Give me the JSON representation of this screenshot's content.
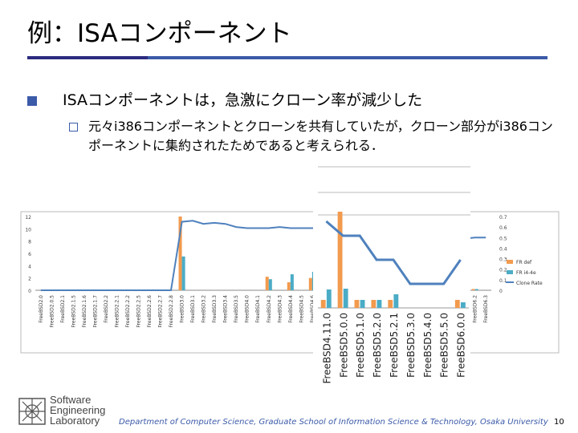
{
  "slide": {
    "title": "例：ISAコンポーネント",
    "bullet_main": "ISAコンポーネントは，急激にクローン率が減少した",
    "bullet_sub": "元々i386コンポーネントとクローンを共有していたが，クローン部分がi386コンポーネントに集約されたためであると考えられる．",
    "footer": "Department of Computer Science, Graduate School of Information Science & Technology, Osaka University",
    "page_number": "10",
    "logo_lines": [
      "Software",
      "Engineering",
      "Laboratory"
    ]
  },
  "colors": {
    "bar1": "#f29a4e",
    "bar2": "#4bacc6",
    "line": "#4f81bd",
    "accent": "#3b5aa8"
  },
  "chart_data": [
    {
      "type": "bar",
      "categories": [
        "FreeBSD2.0",
        "FreeBSD2.0.5",
        "FreeBSD2.1",
        "FreeBSD2.1.5",
        "FreeBSD2.1.6",
        "FreeBSD2.1.7",
        "FreeBSD2.2",
        "FreeBSD2.2.1",
        "FreeBSD2.2.2",
        "FreeBSD2.2.5",
        "FreeBSD2.2.6",
        "FreeBSD2.2.7",
        "FreeBSD2.2.8",
        "FreeBSD3.0",
        "FreeBSD3.1",
        "FreeBSD3.2",
        "FreeBSD3.3",
        "FreeBSD3.4",
        "FreeBSD3.5",
        "FreeBSD4.0",
        "FreeBSD4.1",
        "FreeBSD4.2",
        "FreeBSD4.3",
        "FreeBSD4.4",
        "FreeBSD4.5",
        "FreeBSD4.6",
        "FreeBSD4.7",
        "FreeBSD4.8",
        "FreeBSD4.9",
        "FreeBSD4.10",
        "FreeBSD4.11",
        "FreeBSD5.0",
        "FreeBSD5.1",
        "FreeBSD5.2",
        "FreeBSD5.2.1",
        "FreeBSD5.3",
        "FreeBSD5.4",
        "FreeBSD5.5",
        "FreeBSD6.0",
        "FreeBSD6.1",
        "FreeBSD6.2",
        "FreeBSD6.3"
      ],
      "series": [
        {
          "name": "FR def",
          "values": [
            0,
            0,
            0,
            0,
            0,
            0,
            0,
            0,
            0,
            0,
            0,
            0,
            0,
            12,
            0,
            0,
            0,
            0,
            0,
            0,
            0,
            2.2,
            0,
            1.3,
            0,
            2,
            0,
            0,
            0,
            0,
            1,
            12,
            0,
            0,
            1,
            0,
            0,
            0,
            1,
            0.3,
            0.2,
            0
          ]
        },
        {
          "name": "FR i4-4e",
          "values": [
            0,
            0,
            0,
            0,
            0,
            0,
            0,
            0,
            0,
            0,
            0,
            0,
            0,
            5.5,
            0,
            0,
            0,
            0,
            0,
            0,
            0,
            1.8,
            0,
            2.6,
            0,
            3,
            0,
            0,
            0,
            0,
            2.3,
            2.4,
            0,
            0,
            1,
            0,
            0,
            0,
            1.5,
            0.3,
            0.2,
            0
          ]
        },
        {
          "name": "Clone Rate",
          "values": [
            0,
            0,
            0,
            0,
            0,
            0,
            0,
            0,
            0,
            0,
            0,
            0,
            0,
            0.65,
            0.66,
            0.63,
            0.64,
            0.63,
            0.6,
            0.59,
            0.59,
            0.59,
            0.6,
            0.59,
            0.59,
            0.59,
            0.59,
            0.59,
            0.59,
            0.6,
            0.56,
            0.56,
            0.52,
            0.52,
            0.48,
            0.45,
            0.45,
            0.45,
            0.49,
            0.49,
            0.5,
            0.5
          ]
        }
      ],
      "y_left_ticks": [
        "0",
        "2",
        "4",
        "6",
        "8",
        "10",
        "12"
      ],
      "y_right_ticks": [
        "0",
        "0.1",
        "0.2",
        "0.3",
        "0.4",
        "0.5",
        "0.6",
        "0.7"
      ],
      "ylim": [
        0,
        12
      ],
      "ylim_right": [
        0,
        0.7
      ],
      "legend": "right"
    },
    {
      "type": "bar",
      "categories": [
        "FreeBSD4.11.0",
        "FreeBSD5.0.0",
        "FreeBSD5.1.0",
        "FreeBSD5.2.0",
        "FreeBSD5.2.1",
        "FreeBSD5.3.0",
        "FreeBSD5.4.0",
        "FreeBSD5.5.0",
        "FreeBSD6.0.0"
      ],
      "series": [
        {
          "name": "FR def",
          "values": [
            1,
            12,
            1,
            1,
            1,
            0,
            0,
            0,
            1
          ]
        },
        {
          "name": "FR i4-4e",
          "values": [
            2.3,
            2.4,
            1,
            1,
            1.7,
            0,
            0,
            0,
            0.7
          ]
        },
        {
          "name": "Clone Rate",
          "values": [
            0.63,
            0.6,
            0.6,
            0.55,
            0.55,
            0.5,
            0.5,
            0.5,
            0.55
          ]
        }
      ],
      "ylim": [
        0,
        12
      ],
      "ylim_right": [
        0.45,
        0.65
      ]
    }
  ]
}
